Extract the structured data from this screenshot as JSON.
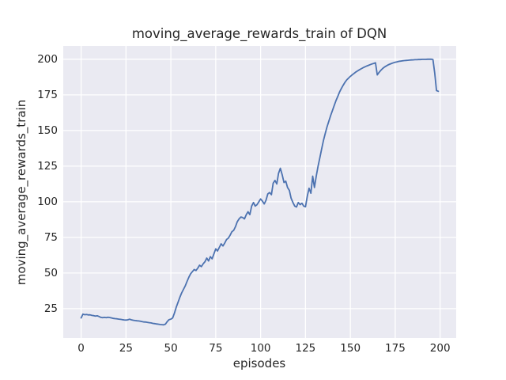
{
  "chart_data": {
    "type": "line",
    "title": "moving_average_rewards_train of DQN",
    "xlabel": "episodes",
    "ylabel": "moving_average_rewards_train",
    "x_ticks": [
      0,
      25,
      50,
      75,
      100,
      125,
      150,
      175,
      200
    ],
    "y_ticks": [
      25,
      50,
      75,
      100,
      125,
      150,
      175,
      200
    ],
    "xlim": [
      -9.95,
      208.95
    ],
    "ylim": [
      4.4,
      209.35
    ],
    "grid": true,
    "legend": false,
    "style": "seaborn-darkgrid",
    "colors": {
      "line": "#4c72b0",
      "axes_background": "#eaeaf2",
      "grid": "#ffffff",
      "text": "#262626",
      "figure_background": "#ffffff"
    },
    "series": [
      {
        "name": "moving_average_rewards_train",
        "x_start": 0,
        "x_step": 1,
        "values": [
          18.5,
          21.2,
          20.8,
          20.9,
          20.6,
          20.7,
          20.3,
          20.1,
          19.8,
          20.0,
          19.5,
          18.9,
          18.7,
          18.9,
          18.7,
          19.0,
          18.8,
          18.5,
          18.2,
          18.0,
          17.9,
          17.7,
          17.5,
          17.3,
          17.1,
          17.0,
          17.2,
          17.6,
          17.2,
          16.9,
          16.7,
          16.5,
          16.4,
          16.2,
          15.9,
          15.7,
          15.6,
          15.4,
          15.2,
          15.0,
          14.7,
          14.5,
          14.3,
          14.1,
          13.9,
          13.8,
          13.7,
          14.2,
          16.0,
          17.3,
          17.7,
          18.5,
          22.0,
          26.0,
          29.5,
          33.0,
          36.0,
          38.5,
          41.0,
          44.0,
          47.0,
          49.5,
          51.0,
          52.5,
          51.8,
          53.5,
          55.5,
          54.5,
          56.5,
          58.0,
          60.5,
          58.5,
          61.5,
          60.0,
          63.5,
          67.0,
          65.5,
          68.0,
          70.5,
          69.0,
          71.0,
          73.5,
          74.5,
          76.5,
          79.0,
          80.0,
          82.5,
          86.0,
          88.0,
          89.3,
          89.0,
          88.0,
          91.0,
          93.0,
          91.0,
          97.0,
          99.5,
          97.0,
          98.0,
          100.0,
          102.0,
          100.5,
          98.5,
          101.0,
          105.5,
          106.5,
          105.0,
          113.0,
          115.0,
          112.5,
          120.0,
          123.5,
          119.0,
          113.5,
          114.5,
          110.0,
          108.0,
          102.5,
          99.5,
          97.0,
          96.3,
          99.5,
          98.0,
          99.0,
          97.0,
          96.5,
          104.0,
          109.5,
          106.0,
          118.0,
          110.0,
          118.0,
          125.0,
          131.0,
          137.0,
          143.0,
          148.0,
          152.5,
          156.5,
          160.5,
          164.0,
          167.5,
          171.0,
          174.0,
          177.0,
          179.5,
          181.8,
          183.8,
          185.5,
          186.8,
          188.0,
          189.0,
          190.0,
          191.0,
          191.8,
          192.6,
          193.3,
          194.0,
          194.6,
          195.2,
          195.7,
          196.2,
          196.7,
          197.1,
          197.5,
          189.0,
          190.8,
          192.3,
          193.5,
          194.5,
          195.3,
          196.0,
          196.6,
          197.1,
          197.5,
          197.9,
          198.2,
          198.5,
          198.7,
          198.9,
          199.1,
          199.2,
          199.3,
          199.4,
          199.5,
          199.6,
          199.7,
          199.7,
          199.8,
          199.8,
          199.9,
          199.9,
          199.9,
          200.0,
          200.0,
          200.0,
          199.8,
          190.0,
          178.0,
          177.5
        ]
      }
    ]
  }
}
